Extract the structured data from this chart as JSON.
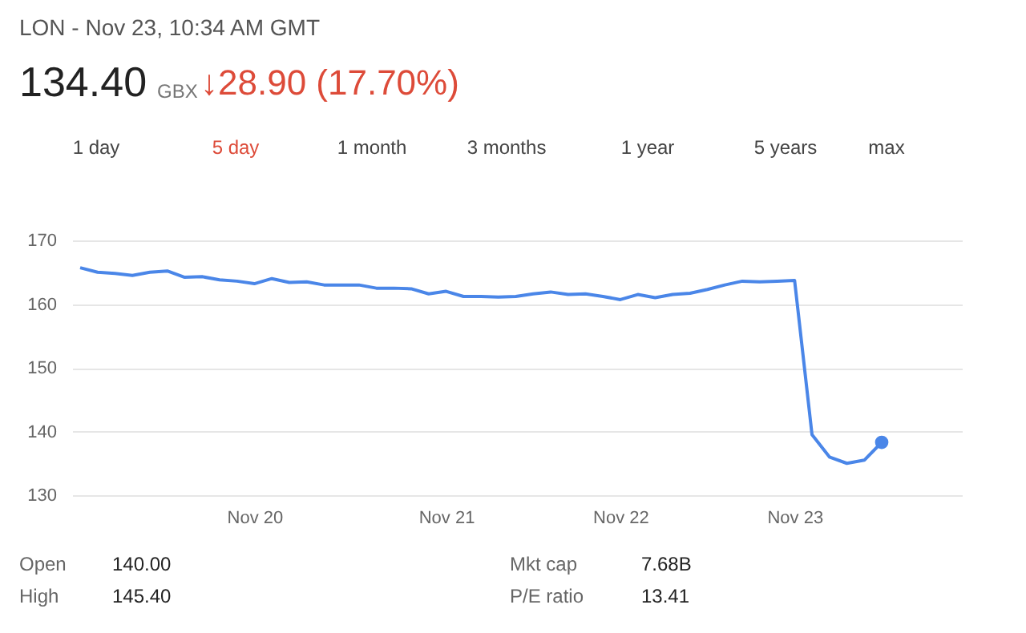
{
  "chart_data": {
    "type": "line",
    "title": "LON - Nov 23, 10:34 AM GMT",
    "categories": [
      null,
      null,
      null,
      null,
      null,
      null,
      null,
      null,
      null,
      null,
      "Nov 20",
      null,
      null,
      null,
      null,
      null,
      null,
      null,
      null,
      null,
      null,
      "Nov 21",
      null,
      null,
      null,
      null,
      null,
      null,
      null,
      null,
      null,
      "Nov 22",
      null,
      null,
      null,
      null,
      null,
      null,
      null,
      null,
      null,
      "Nov 23",
      null,
      null,
      null,
      null,
      null
    ],
    "series": [
      {
        "color": "#4a86e8",
        "values": [
          165.7,
          165,
          164.8,
          164.5,
          165,
          165.2,
          164.2,
          164.3,
          163.8,
          163.6,
          163.2,
          164,
          163.4,
          163.5,
          163,
          163,
          163,
          162.5,
          162.5,
          162.4,
          161.6,
          162,
          161.2,
          161.2,
          161.1,
          161.2,
          161.6,
          161.9,
          161.5,
          161.6,
          161.2,
          160.7,
          161.5,
          161,
          161.5,
          161.7,
          162.3,
          163,
          163.6,
          163.5,
          163.6,
          163.7,
          139.5,
          136,
          135,
          135.5,
          138.3
        ]
      },
      {
        "type": "scatter",
        "color": "#4a86e8",
        "marker": "circle",
        "values": [
          null,
          null,
          null,
          null,
          null,
          null,
          null,
          null,
          null,
          null,
          null,
          null,
          null,
          null,
          null,
          null,
          null,
          null,
          null,
          null,
          null,
          null,
          null,
          null,
          null,
          null,
          null,
          null,
          null,
          null,
          null,
          null,
          null,
          null,
          null,
          null,
          null,
          null,
          null,
          null,
          null,
          null,
          null,
          null,
          null,
          null,
          138.3
        ]
      }
    ],
    "ylim": [
      130,
      170
    ],
    "yticks": [
      130,
      140,
      150,
      160,
      170
    ],
    "grid": "y",
    "marker": "none",
    "line_style": "solid",
    "annotations": [
      "134.40",
      "GBX",
      "↓28.90 (17.70%)",
      "1 day",
      "5 day",
      "1 month",
      "3 months",
      "1 year",
      "5 years",
      "max",
      "Open",
      "140.00",
      "High",
      "145.40",
      "Mkt cap",
      "7.68B",
      "P/E ratio",
      "13.41"
    ]
  }
}
